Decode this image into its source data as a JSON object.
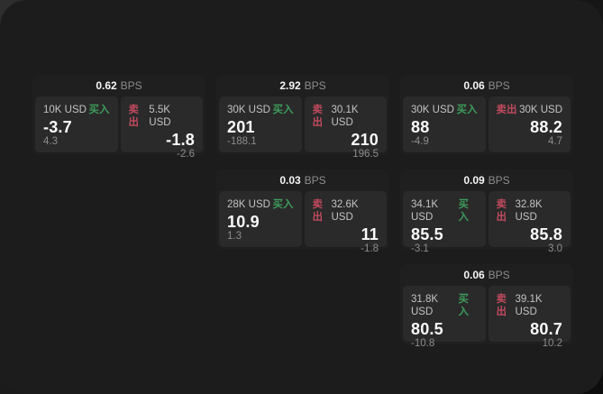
{
  "window": {
    "bps_suffix": "BPS",
    "buy_label": "买入",
    "sell_label": "卖出"
  },
  "colors": {
    "buy_green": "#3e9b5b",
    "sell_red": "#c04a5e",
    "window_bg": "#1c1c1c",
    "card_bg": "#1f1f1f",
    "pane_bg": "#2a2a2a"
  },
  "cards": [
    {
      "bps": "0.62",
      "buy": {
        "amount": "10K USD",
        "value": "-3.7",
        "sub": "4.3"
      },
      "sell": {
        "amount": "5.5K USD",
        "value": "-1.8",
        "sub": "-2.6"
      }
    },
    {
      "bps": "2.92",
      "buy": {
        "amount": "30K USD",
        "value": "201",
        "sub": "-188.1"
      },
      "sell": {
        "amount": "30.1K USD",
        "value": "210",
        "sub": "196.5"
      }
    },
    {
      "bps": "0.06",
      "buy": {
        "amount": "30K USD",
        "value": "88",
        "sub": "-4.9"
      },
      "sell": {
        "amount": "30K USD",
        "value": "88.2",
        "sub": "4.7"
      }
    },
    {
      "bps": "0.03",
      "buy": {
        "amount": "28K USD",
        "value": "10.9",
        "sub": "1.3"
      },
      "sell": {
        "amount": "32.6K USD",
        "value": "11",
        "sub": "-1.8"
      }
    },
    {
      "bps": "0.09",
      "buy": {
        "amount": "34.1K USD",
        "value": "85.5",
        "sub": "-3.1"
      },
      "sell": {
        "amount": "32.8K USD",
        "value": "85.8",
        "sub": "3.0"
      }
    },
    {
      "bps": "0.06",
      "buy": {
        "amount": "31.8K USD",
        "value": "80.5",
        "sub": "-10.8"
      },
      "sell": {
        "amount": "39.1K USD",
        "value": "80.7",
        "sub": "10.2"
      }
    }
  ]
}
